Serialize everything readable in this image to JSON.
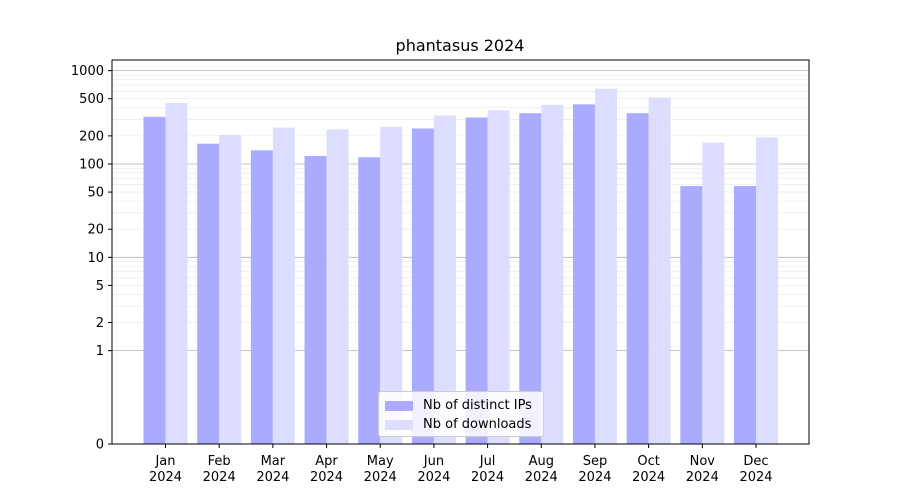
{
  "chart_data": {
    "type": "bar",
    "title": "phantasus 2024",
    "xlabel": "",
    "ylabel": "",
    "yscale": "symlog",
    "ylim": [
      0,
      1300
    ],
    "yticks": [
      0,
      1,
      2,
      5,
      10,
      20,
      50,
      100,
      200,
      500,
      1000
    ],
    "ytick_labels": [
      "0",
      "1",
      "2",
      "5",
      "10",
      "20",
      "50",
      "100",
      "200",
      "500",
      "1000"
    ],
    "categories": [
      [
        "Jan",
        "2024"
      ],
      [
        "Feb",
        "2024"
      ],
      [
        "Mar",
        "2024"
      ],
      [
        "Apr",
        "2024"
      ],
      [
        "May",
        "2024"
      ],
      [
        "Jun",
        "2024"
      ],
      [
        "Jul",
        "2024"
      ],
      [
        "Aug",
        "2024"
      ],
      [
        "Sep",
        "2024"
      ],
      [
        "Oct",
        "2024"
      ],
      [
        "Nov",
        "2024"
      ],
      [
        "Dec",
        "2024"
      ]
    ],
    "series": [
      {
        "name": "Nb of distinct IPs",
        "color": "#aaaaff",
        "values": [
          320,
          165,
          140,
          122,
          118,
          240,
          315,
          350,
          435,
          350,
          58,
          58
        ]
      },
      {
        "name": "Nb of downloads",
        "color": "#ddddff",
        "values": [
          450,
          205,
          245,
          235,
          250,
          330,
          375,
          430,
          640,
          515,
          170,
          193
        ]
      }
    ],
    "grid": true,
    "legend_position": "lower-center"
  }
}
